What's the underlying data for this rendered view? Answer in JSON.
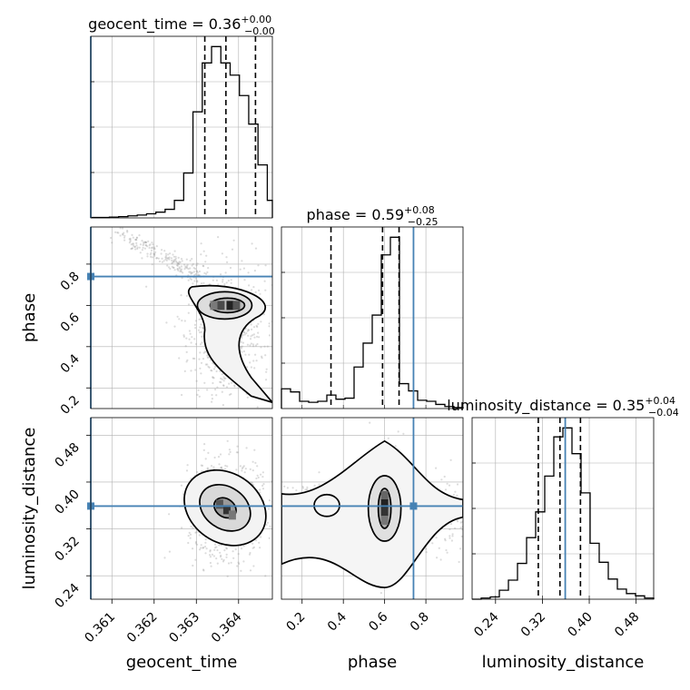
{
  "colors": {
    "truth": "#4682b4",
    "hist": "#000000",
    "grid": "#b0b0b0",
    "points": "#9a9a9a"
  },
  "chart_data": {
    "type": "corner",
    "parameters": [
      {
        "name": "geocent_time",
        "label": "geocent_time",
        "range": [
          0.3605,
          0.3648
        ],
        "ticks": [
          0.361,
          0.362,
          0.363,
          0.364
        ],
        "tick_labels": [
          "0.361",
          "0.362",
          "0.363",
          "0.364"
        ],
        "truth": 0.3605,
        "quantiles": [
          0.3632,
          0.3637,
          0.3644
        ]
      },
      {
        "name": "phase",
        "label": "phase",
        "range": [
          0.1,
          0.98
        ],
        "ticks": [
          0.2,
          0.4,
          0.6,
          0.8
        ],
        "tick_labels": [
          "0.2",
          "0.4",
          "0.6",
          "0.8"
        ],
        "truth": 0.74,
        "quantiles": [
          0.34,
          0.59,
          0.67
        ]
      },
      {
        "name": "luminosity_distance",
        "label": "luminosity_distance",
        "range": [
          0.2,
          0.51
        ],
        "ticks": [
          0.24,
          0.32,
          0.4,
          0.48
        ],
        "tick_labels": [
          "0.24",
          "0.32",
          "0.40",
          "0.48"
        ],
        "truth": 0.359,
        "quantiles": [
          0.313,
          0.35,
          0.385
        ]
      }
    ],
    "titles": [
      {
        "text": "geocent_time = 0.36",
        "sup": "+0.00",
        "sub": "−0.00"
      },
      {
        "text": "phase = 0.59",
        "sup": "+0.08",
        "sub": "−0.25"
      },
      {
        "text": "luminosity_distance = 0.35",
        "sup": "+0.04",
        "sub": "−0.04"
      }
    ],
    "histograms": [
      {
        "param": "geocent_time",
        "edges": [
          0.3605,
          0.36072,
          0.36094,
          0.36116,
          0.36138,
          0.3616,
          0.36182,
          0.36204,
          0.36226,
          0.36248,
          0.3627,
          0.36292,
          0.36314,
          0.36336,
          0.36358,
          0.3638,
          0.36402,
          0.36424,
          0.36446,
          0.36468,
          0.3648
        ],
        "counts": [
          1,
          1,
          2,
          3,
          5,
          7,
          10,
          14,
          21,
          43,
          110,
          260,
          380,
          420,
          380,
          350,
          300,
          230,
          130,
          43
        ]
      },
      {
        "param": "phase",
        "edges": [
          0.1,
          0.144,
          0.188,
          0.232,
          0.276,
          0.32,
          0.364,
          0.408,
          0.452,
          0.496,
          0.54,
          0.584,
          0.628,
          0.672,
          0.716,
          0.76,
          0.804,
          0.848,
          0.892,
          0.936,
          0.98
        ],
        "counts": [
          19,
          16,
          7,
          6,
          7,
          13,
          9,
          10,
          40,
          63,
          90,
          148,
          165,
          24,
          17,
          8,
          7,
          4,
          2,
          1
        ]
      },
      {
        "param": "luminosity_distance",
        "edges": [
          0.2,
          0.2155,
          0.231,
          0.2465,
          0.262,
          0.2775,
          0.293,
          0.3085,
          0.324,
          0.3395,
          0.355,
          0.3705,
          0.386,
          0.4015,
          0.417,
          0.4325,
          0.448,
          0.4635,
          0.479,
          0.4945,
          0.51
        ],
        "counts": [
          0,
          1,
          2,
          8,
          17,
          32,
          55,
          78,
          110,
          145,
          153,
          130,
          95,
          50,
          33,
          18,
          9,
          5,
          3,
          1
        ]
      }
    ]
  }
}
